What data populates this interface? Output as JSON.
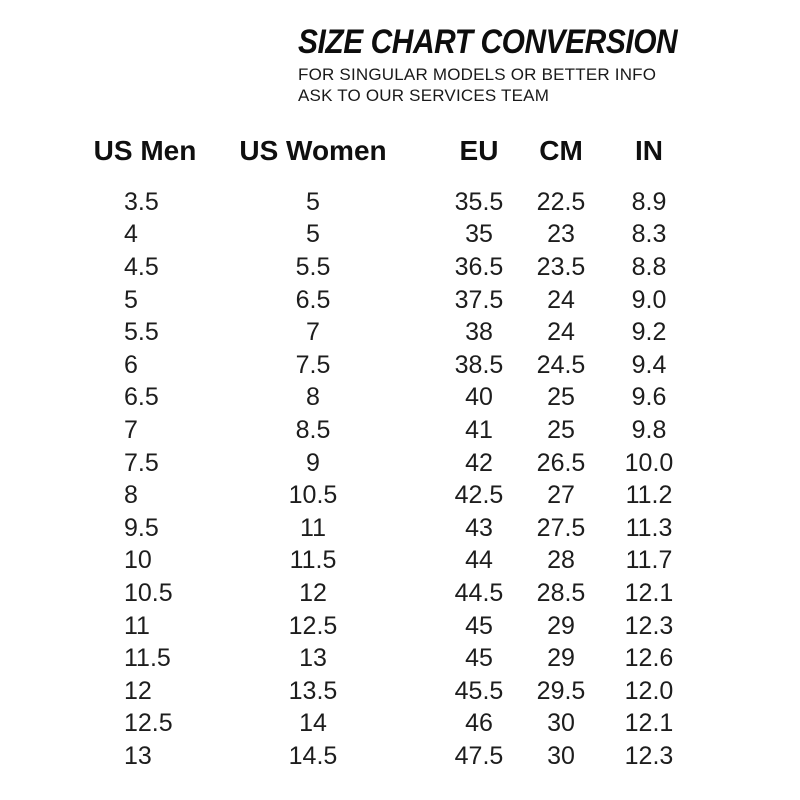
{
  "page": {
    "background_color": "#ffffff",
    "text_color": "#1b1b1b",
    "title_color": "#0d0d0d"
  },
  "header": {
    "title": "SIZE CHART CONVERSION",
    "subtitle_line1": "FOR SINGULAR MODELS OR BETTER INFO",
    "subtitle_line2": "ASK TO OUR SERVICES TEAM"
  },
  "chart_data": {
    "type": "table",
    "title": "SIZE CHART CONVERSION",
    "columns": [
      "US Men",
      "US Women",
      "EU",
      "CM",
      "IN"
    ],
    "rows": [
      [
        "3.5",
        "5",
        "35.5",
        "22.5",
        "8.9"
      ],
      [
        "4",
        "5",
        "35",
        "23",
        "8.3"
      ],
      [
        "4.5",
        "5.5",
        "36.5",
        "23.5",
        "8.8"
      ],
      [
        "5",
        "6.5",
        "37.5",
        "24",
        "9.0"
      ],
      [
        "5.5",
        "7",
        "38",
        "24",
        "9.2"
      ],
      [
        "6",
        "7.5",
        "38.5",
        "24.5",
        "9.4"
      ],
      [
        "6.5",
        "8",
        "40",
        "25",
        "9.6"
      ],
      [
        "7",
        "8.5",
        "41",
        "25",
        "9.8"
      ],
      [
        "7.5",
        "9",
        "42",
        "26.5",
        "10.0"
      ],
      [
        "8",
        "10.5",
        "42.5",
        "27",
        "11.2"
      ],
      [
        "9.5",
        "11",
        "43",
        "27.5",
        "11.3"
      ],
      [
        "10",
        "11.5",
        "44",
        "28",
        "11.7"
      ],
      [
        "10.5",
        "12",
        "44.5",
        "28.5",
        "12.1"
      ],
      [
        "11",
        "12.5",
        "45",
        "29",
        "12.3"
      ],
      [
        "11.5",
        "13",
        "45",
        "29",
        "12.6"
      ],
      [
        "12",
        "13.5",
        "45.5",
        "29.5",
        "12.0"
      ],
      [
        "12.5",
        "14",
        "46",
        "30",
        "12.1"
      ],
      [
        "13",
        "14.5",
        "47.5",
        "30",
        "12.3"
      ]
    ]
  }
}
